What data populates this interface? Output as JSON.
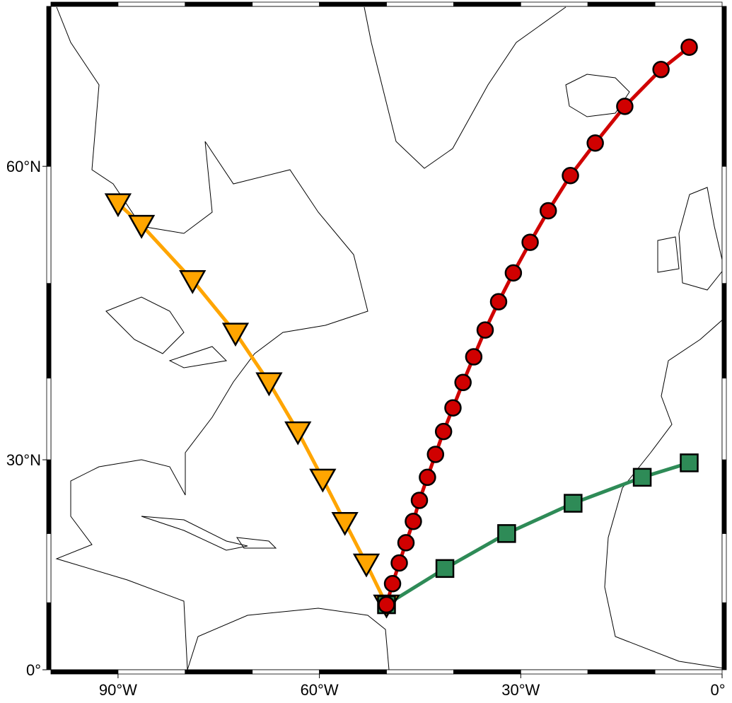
{
  "map": {
    "projection": "mercator",
    "xlim": [
      -100,
      0
    ],
    "ylim": [
      0,
      70
    ],
    "xticks": [
      {
        "value": -90,
        "label": "90°W"
      },
      {
        "value": -60,
        "label": "60°W"
      },
      {
        "value": -30,
        "label": "30°W"
      },
      {
        "value": 0,
        "label": "0°"
      }
    ],
    "yticks": [
      {
        "value": 0,
        "label": "0°"
      },
      {
        "value": 30,
        "label": "30°N"
      },
      {
        "value": 60,
        "label": "60°N"
      }
    ],
    "tracks": [
      {
        "color": "#ffa500",
        "marker": "triangle-down",
        "lon": [
          -90.0,
          -86.5,
          -78.9,
          -72.5,
          -67.5,
          -63.2,
          -59.5,
          -56.2,
          -53.0,
          -50.0
        ],
        "lat": [
          57.1,
          55.3,
          50.3,
          45.0,
          39.5,
          33.6,
          27.5,
          21.6,
          15.7,
          9.7
        ]
      },
      {
        "color": "#2e8b57",
        "marker": "square",
        "lon": [
          -50.0,
          -41.3,
          -32.1,
          -22.2,
          -11.9,
          -4.9
        ],
        "lat": [
          9.7,
          15.0,
          20.0,
          24.2,
          27.7,
          29.6
        ]
      },
      {
        "color": "#d00000",
        "marker": "circle",
        "lon": [
          -50.0,
          -49.1,
          -48.1,
          -47.1,
          -46.0,
          -45.1,
          -43.9,
          -42.7,
          -41.5,
          -40.1,
          -38.6,
          -37.0,
          -35.3,
          -33.3,
          -31.1,
          -28.6,
          -25.9,
          -22.6,
          -18.9,
          -14.5,
          -9.1,
          -4.9
        ],
        "lat": [
          9.7,
          12.8,
          15.8,
          18.7,
          21.7,
          24.6,
          27.7,
          30.7,
          33.6,
          36.5,
          39.5,
          42.4,
          45.3,
          48.2,
          51.0,
          53.8,
          56.5,
          59.3,
          61.7,
          64.2,
          66.5,
          67.8
        ]
      }
    ]
  }
}
